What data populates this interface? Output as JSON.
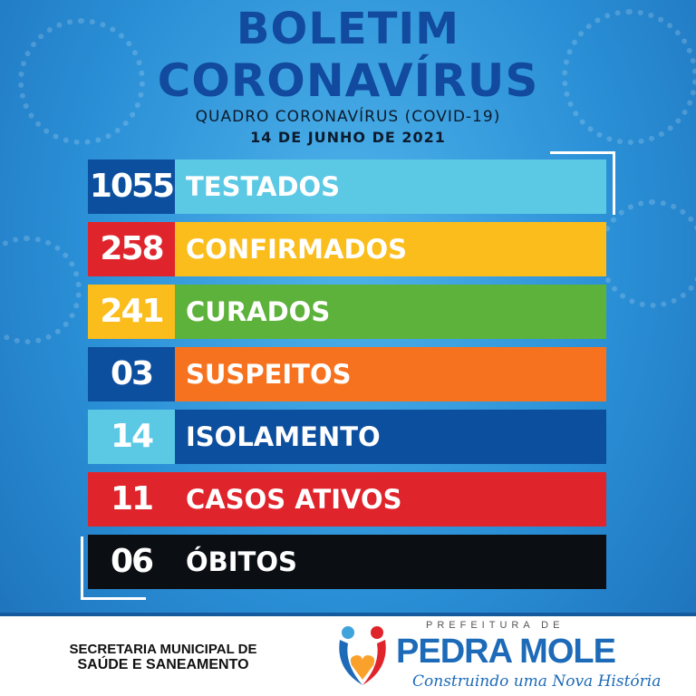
{
  "header": {
    "title_line1": "BOLETIM",
    "title_line2": "CORONAVÍRUS",
    "subtitle": "QUADRO CORONAVÍRUS (COVID-19)",
    "date": "14 DE JUNHO DE 2021"
  },
  "rows": [
    {
      "value": "1055",
      "label": "TESTADOS",
      "num_color": "#0d4f9f",
      "bar_color": "#5bc8e4"
    },
    {
      "value": "258",
      "label": "CONFIRMADOS",
      "num_color": "#e0242c",
      "bar_color": "#fbbd1c"
    },
    {
      "value": "241",
      "label": "CURADOS",
      "num_color": "#fbbd1c",
      "bar_color": "#5cb23a"
    },
    {
      "value": "03",
      "label": "SUSPEITOS",
      "num_color": "#0d4f9f",
      "bar_color": "#f7721f"
    },
    {
      "value": "14",
      "label": "ISOLAMENTO",
      "num_color": "#5bc8e4",
      "bar_color": "#0d4f9f"
    },
    {
      "value": "11",
      "label": "CASOS ATIVOS",
      "num_color": "#e0242c",
      "bar_color": "#e0242c"
    },
    {
      "value": "06",
      "label": "ÓBITOS",
      "num_color": "#0b0f14",
      "bar_color": "#0b0f14"
    }
  ],
  "footer": {
    "secretaria_line1": "SECRETARIA MUNICIPAL DE",
    "secretaria_line2": "SAÚDE E SANEAMENTO",
    "logo_top": "PREFEITURA DE",
    "logo_name": "PEDRA MOLE",
    "logo_slogan": "Construindo uma Nova História"
  }
}
